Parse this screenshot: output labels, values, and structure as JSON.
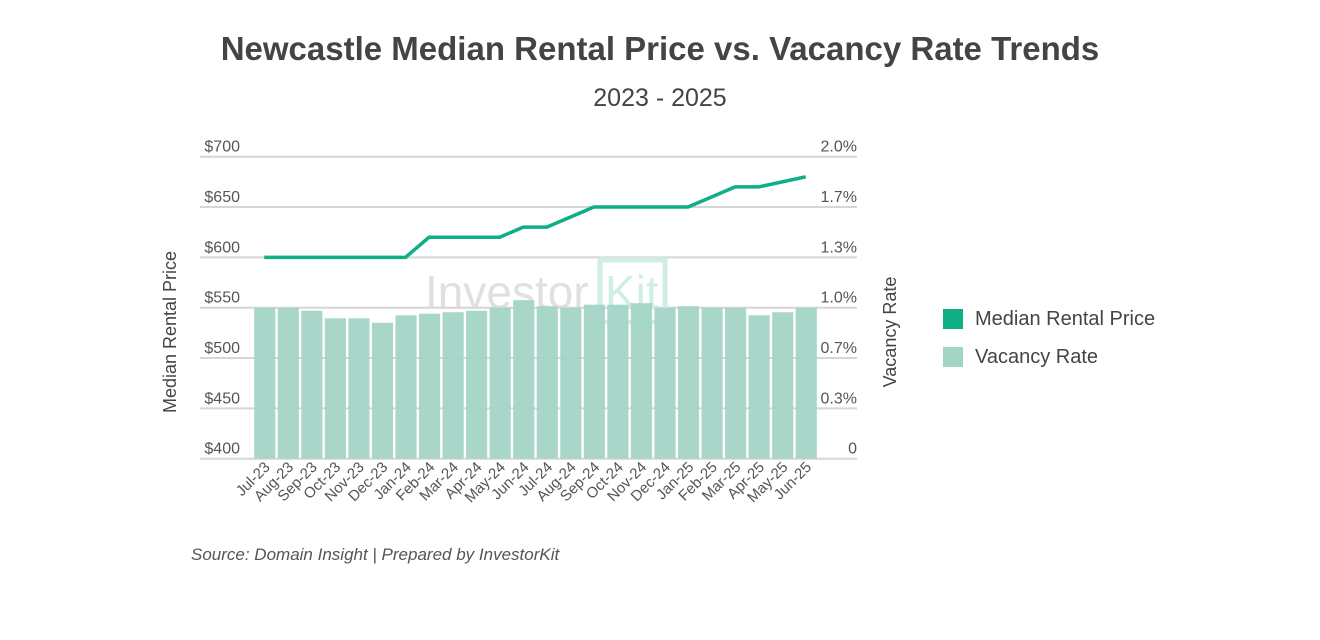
{
  "chart_data": {
    "type": "bar+line",
    "title": "Newcastle Median Rental Price vs. Vacancy Rate Trends",
    "subtitle": "2023 - 2025",
    "categories": [
      "Jul-23",
      "Aug-23",
      "Sep-23",
      "Oct-23",
      "Nov-23",
      "Dec-23",
      "Jan-24",
      "Feb-24",
      "Mar-24",
      "Apr-24",
      "May-24",
      "Jun-24",
      "Jul-24",
      "Aug-24",
      "Sep-24",
      "Oct-24",
      "Nov-24",
      "Dec-24",
      "Jan-25",
      "Feb-25",
      "Mar-25",
      "Apr-25",
      "May-25",
      "Jun-25"
    ],
    "series": [
      {
        "name": "Median Rental Price",
        "type": "line",
        "axis": "left",
        "color": "#0eaf87",
        "values": [
          600,
          600,
          600,
          600,
          600,
          600,
          600,
          620,
          620,
          620,
          620,
          630,
          630,
          640,
          650,
          650,
          650,
          650,
          650,
          660,
          670,
          670,
          675,
          680
        ]
      },
      {
        "name": "Vacancy Rate",
        "type": "bar",
        "axis": "right",
        "color": "#a3d5c7",
        "values": [
          1.0,
          1.0,
          0.98,
          0.93,
          0.93,
          0.9,
          0.95,
          0.96,
          0.97,
          0.98,
          1.0,
          1.05,
          1.01,
          1.0,
          1.02,
          1.02,
          1.03,
          1.0,
          1.01,
          1.0,
          1.0,
          0.95,
          0.97,
          1.0
        ]
      }
    ],
    "ylabel_left": "Median Rental Price",
    "ylabel_right": "Vacancy Rate",
    "ylim_left": [
      400,
      700
    ],
    "ylim_right": [
      0,
      2.0
    ],
    "yticks_left": [
      "$400",
      "$450",
      "$500",
      "$550",
      "$600",
      "$650",
      "$700"
    ],
    "yticks_right": [
      "0",
      "0.3%",
      "0.7%",
      "1.0%",
      "1.3%",
      "1.7%",
      "2.0%"
    ],
    "grid": true,
    "legend_placement": "right"
  },
  "watermark": "InvestorKit",
  "source": "Source: Domain Insight | Prepared by InvestorKit"
}
